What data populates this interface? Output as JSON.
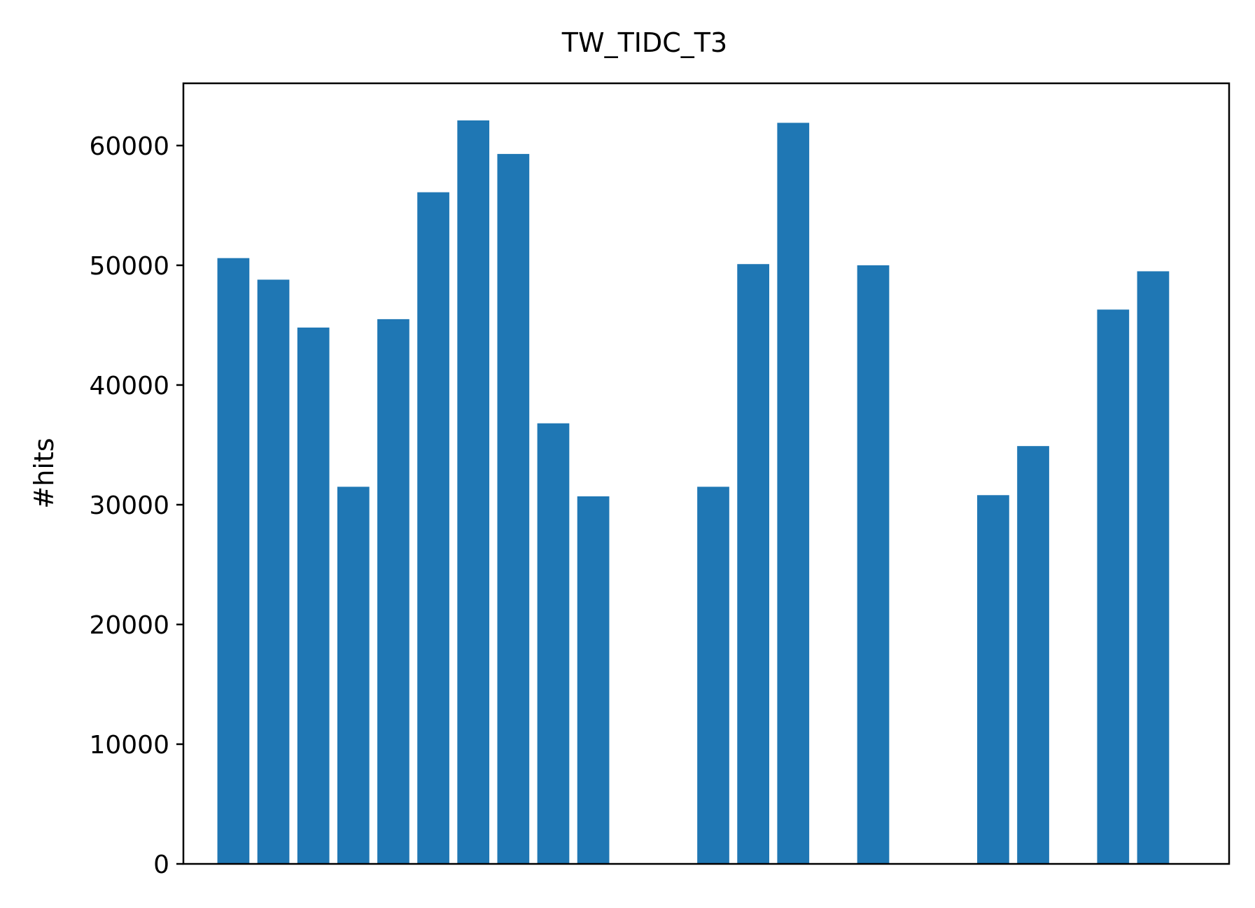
{
  "chart_data": {
    "type": "bar",
    "title": "TW_TIDC_T3",
    "xlabel": "",
    "ylabel": "#hits",
    "x": [
      1,
      2,
      3,
      4,
      5,
      6,
      7,
      8,
      9,
      10,
      11,
      12,
      13,
      14,
      15,
      16,
      17,
      18,
      19,
      20,
      21,
      22,
      23,
      24
    ],
    "values": [
      50600,
      48800,
      44800,
      31500,
      45500,
      56100,
      62100,
      59300,
      36800,
      30700,
      0,
      0,
      31500,
      50100,
      61900,
      0,
      50000,
      0,
      0,
      30800,
      34900,
      0,
      46300,
      49500
    ],
    "xlim": [
      -0.25,
      25.9
    ],
    "ylim": [
      0,
      65200
    ],
    "yticks": [
      0,
      10000,
      20000,
      30000,
      40000,
      50000,
      60000
    ],
    "ytick_labels": [
      "0",
      "10000",
      "20000",
      "30000",
      "40000",
      "50000",
      "60000"
    ],
    "bar_color": "#1f77b4",
    "grid": false,
    "legend": "none"
  }
}
